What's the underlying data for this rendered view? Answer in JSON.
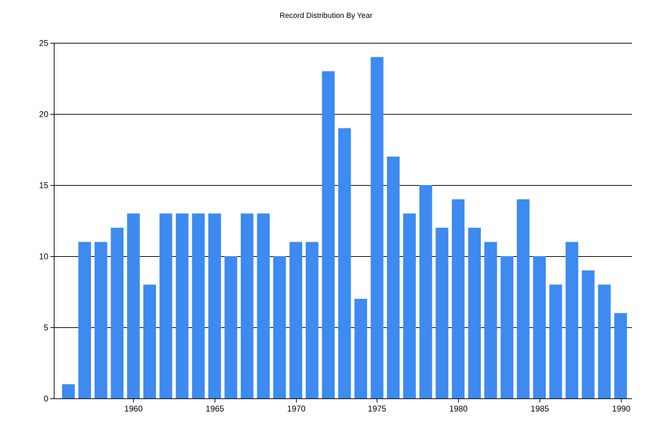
{
  "chart_data": {
    "type": "bar",
    "title": "Record Distribution By Year",
    "xlabel": "",
    "ylabel": "",
    "x": [
      1956,
      1957,
      1958,
      1959,
      1960,
      1961,
      1962,
      1963,
      1964,
      1965,
      1966,
      1967,
      1968,
      1969,
      1970,
      1971,
      1972,
      1973,
      1974,
      1975,
      1976,
      1977,
      1978,
      1979,
      1980,
      1981,
      1982,
      1983,
      1984,
      1985,
      1986,
      1987,
      1988,
      1989,
      1990
    ],
    "values": [
      1,
      11,
      11,
      12,
      13,
      8,
      13,
      13,
      13,
      13,
      10,
      13,
      13,
      10,
      11,
      11,
      23,
      19,
      7,
      24,
      17,
      13,
      15,
      12,
      14,
      12,
      11,
      10,
      14,
      10,
      8,
      11,
      9,
      8,
      6
    ],
    "xlim": [
      1955.1,
      1990.7
    ],
    "ylim": [
      0,
      25
    ],
    "x_ticks": [
      1960,
      1965,
      1970,
      1975,
      1980,
      1985,
      1990
    ],
    "y_ticks": [
      0,
      5,
      10,
      15,
      20,
      25
    ],
    "grid": "horizontal",
    "bar_color": "#3d8af0",
    "grid_color": "#000000"
  }
}
